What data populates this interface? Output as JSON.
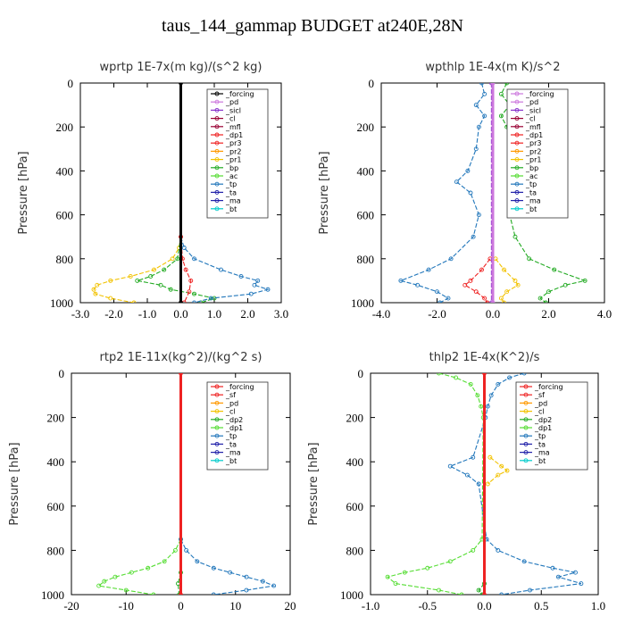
{
  "figure": {
    "title": "taus_144_gammap  BUDGET at240E,28N"
  },
  "colors": {
    "black": "#000000",
    "violet": "#cc77dd",
    "purple": "#8833cc",
    "maroon": "#990033",
    "red": "#ee2222",
    "orange": "#ff9900",
    "yellow": "#f2c200",
    "green": "#22aa22",
    "lightgreen": "#55dd33",
    "blue": "#2277bb",
    "navy": "#2222aa",
    "cyan": "#00cccc"
  },
  "chart_data": [
    {
      "type": "line",
      "title": "wprtp  1E-7x(m kg)/(s^2 kg)",
      "ylabel": "Pressure [hPa]",
      "xlim": [
        -3,
        3
      ],
      "ylim": [
        1000,
        0
      ],
      "xticks": [
        "-3.0",
        "-2.0",
        "-1.0",
        "0.0",
        "1.0",
        "2.0",
        "3.0"
      ],
      "xtickvals": [
        -3,
        -2,
        -1,
        0,
        1,
        2,
        3
      ],
      "yticks": [
        "0",
        "200",
        "400",
        "600",
        "800",
        "1000"
      ],
      "ytickvals": [
        0,
        200,
        400,
        600,
        800,
        1000
      ],
      "legend": [
        "_forcing",
        "_pd",
        "_sicl",
        "_cl",
        "_mfl",
        "_dp1",
        "_pr3",
        "_pr2",
        "_pr1",
        "_bp",
        "_ac",
        "_tp",
        "_ta",
        "_ma",
        "_bt"
      ],
      "legend_colors": [
        "black",
        "violet",
        "purple",
        "maroon",
        "maroon",
        "red",
        "red",
        "orange",
        "yellow",
        "green",
        "lightgreen",
        "blue",
        "navy",
        "navy",
        "cyan"
      ],
      "series": [
        {
          "name": "_pr1",
          "color": "yellow",
          "p": [
            700,
            750,
            800,
            850,
            880,
            900,
            920,
            940,
            960,
            980,
            1000
          ],
          "values": [
            0,
            -0.05,
            -0.25,
            -0.8,
            -1.5,
            -2.1,
            -2.5,
            -2.6,
            -2.55,
            -2.1,
            -1.4
          ]
        },
        {
          "name": "_bp",
          "color": "green",
          "p": [
            700,
            800,
            850,
            880,
            900,
            920,
            940,
            960,
            980,
            1000
          ],
          "values": [
            0,
            -0.1,
            -0.5,
            -0.9,
            -1.3,
            -0.6,
            -0.3,
            0.4,
            1.0,
            0.6
          ]
        },
        {
          "name": "_tp",
          "color": "blue",
          "p": [
            700,
            750,
            800,
            850,
            880,
            900,
            920,
            940,
            960,
            980,
            1000
          ],
          "values": [
            0,
            0.1,
            0.4,
            1.2,
            1.8,
            2.3,
            2.2,
            2.6,
            2.1,
            0.9,
            0.4
          ]
        },
        {
          "name": "_dp1",
          "color": "red",
          "p": [
            700,
            800,
            850,
            900,
            950,
            1000
          ],
          "values": [
            0,
            0.05,
            0.15,
            0.3,
            0.25,
            0.1
          ]
        },
        {
          "name": "_forcing",
          "color": "black",
          "p": [
            0,
            1000
          ],
          "values": [
            0,
            0
          ]
        }
      ]
    },
    {
      "type": "line",
      "title": "wpthlp  1E-4x(m K)/s^2",
      "ylabel": "Pressure [hPa]",
      "xlim": [
        -4,
        4
      ],
      "ylim": [
        1000,
        0
      ],
      "xticks": [
        "-4.0",
        "-2.0",
        "0.0",
        "2.0",
        "4.0"
      ],
      "xtickvals": [
        -4,
        -2,
        0,
        2,
        4
      ],
      "yticks": [
        "0",
        "200",
        "400",
        "600",
        "800",
        "1000"
      ],
      "ytickvals": [
        0,
        200,
        400,
        600,
        800,
        1000
      ],
      "legend": [
        "_forcing",
        "_pd",
        "_sicl",
        "_cl",
        "_mfl",
        "_dp1",
        "_pr3",
        "_pr2",
        "_pr1",
        "_bp",
        "_ac",
        "_tp",
        "_ta",
        "_ma",
        "_bt"
      ],
      "legend_colors": [
        "violet",
        "violet",
        "purple",
        "maroon",
        "maroon",
        "red",
        "red",
        "orange",
        "yellow",
        "green",
        "lightgreen",
        "blue",
        "navy",
        "navy",
        "cyan"
      ],
      "series": [
        {
          "name": "_bp",
          "color": "green",
          "p": [
            0,
            50,
            100,
            150,
            200,
            300,
            400,
            450,
            500,
            600,
            700,
            800,
            850,
            900,
            920,
            950,
            980,
            1000
          ],
          "values": [
            0.5,
            0.3,
            0.6,
            0.3,
            0.5,
            0.7,
            1.0,
            1.3,
            0.9,
            0.6,
            0.8,
            1.3,
            2.2,
            3.3,
            2.6,
            2.0,
            1.7,
            1.9
          ]
        },
        {
          "name": "_tp",
          "color": "blue",
          "p": [
            0,
            50,
            100,
            150,
            200,
            300,
            400,
            450,
            500,
            600,
            700,
            800,
            850,
            900,
            920,
            950,
            980,
            1000
          ],
          "values": [
            -0.4,
            -0.3,
            -0.6,
            -0.3,
            -0.5,
            -0.6,
            -0.9,
            -1.3,
            -0.8,
            -0.5,
            -0.7,
            -1.5,
            -2.3,
            -3.3,
            -2.7,
            -2.0,
            -1.6,
            -1.9
          ]
        },
        {
          "name": "_pr1",
          "color": "yellow",
          "p": [
            800,
            850,
            900,
            920,
            950,
            980,
            1000
          ],
          "values": [
            0.1,
            0.4,
            0.8,
            0.9,
            0.5,
            0.3,
            0.4
          ]
        },
        {
          "name": "_dp1",
          "color": "red",
          "p": [
            800,
            850,
            900,
            920,
            950,
            980,
            1000
          ],
          "values": [
            -0.1,
            -0.4,
            -0.8,
            -1.0,
            -0.6,
            -0.3,
            -0.2
          ]
        },
        {
          "name": "_sicl",
          "color": "purple",
          "p": [
            0,
            1000
          ],
          "values": [
            -0.05,
            -0.05
          ]
        },
        {
          "name": "_forcing",
          "color": "violet",
          "p": [
            0,
            1000
          ],
          "values": [
            0,
            0
          ]
        }
      ]
    },
    {
      "type": "line",
      "title": "rtp2  1E-11x(kg^2)/(kg^2 s)",
      "ylabel": "Pressure [hPa]",
      "xlim": [
        -20,
        20
      ],
      "ylim": [
        1000,
        0
      ],
      "xticks": [
        "-20",
        "-10",
        "0",
        "10",
        "20"
      ],
      "xtickvals": [
        -20,
        -10,
        0,
        10,
        20
      ],
      "yticks": [
        "0",
        "200",
        "400",
        "600",
        "800",
        "1000"
      ],
      "ytickvals": [
        0,
        200,
        400,
        600,
        800,
        1000
      ],
      "legend": [
        "_forcing",
        "_sf",
        "_pd",
        "_cl",
        "_dp2",
        "_dp1",
        "_tp",
        "_ta",
        "_ma",
        "_bt"
      ],
      "legend_colors": [
        "red",
        "red",
        "orange",
        "yellow",
        "green",
        "lightgreen",
        "blue",
        "navy",
        "navy",
        "cyan"
      ],
      "series": [
        {
          "name": "_dp1",
          "color": "lightgreen",
          "p": [
            750,
            800,
            850,
            880,
            900,
            920,
            940,
            960,
            980,
            1000
          ],
          "values": [
            0,
            -1,
            -3,
            -6,
            -9,
            -12,
            -14,
            -15,
            -10,
            -5
          ]
        },
        {
          "name": "_tp",
          "color": "blue",
          "p": [
            750,
            800,
            850,
            880,
            900,
            920,
            940,
            960,
            980,
            1000
          ],
          "values": [
            0,
            1,
            3,
            6,
            9,
            12,
            15,
            17,
            12,
            6
          ]
        },
        {
          "name": "_dp2",
          "color": "green",
          "p": [
            900,
            950,
            1000
          ],
          "values": [
            0,
            -0.5,
            -0.3
          ]
        },
        {
          "name": "_forcing",
          "color": "red",
          "p": [
            0,
            1000
          ],
          "values": [
            0,
            0
          ]
        }
      ]
    },
    {
      "type": "line",
      "title": "thlp2  1E-4x(K^2)/s",
      "ylabel": "Pressure [hPa]",
      "xlim": [
        -1.0,
        1.0
      ],
      "ylim": [
        1000,
        0
      ],
      "xticks": [
        "-1.0",
        "-0.5",
        "0.0",
        "0.5",
        "1.0"
      ],
      "xtickvals": [
        -1,
        -0.5,
        0,
        0.5,
        1
      ],
      "yticks": [
        "0",
        "200",
        "400",
        "600",
        "800",
        "1000"
      ],
      "ytickvals": [
        0,
        200,
        400,
        600,
        800,
        1000
      ],
      "legend": [
        "_forcing",
        "_sf",
        "_pd",
        "_cl",
        "_dp2",
        "_dp1",
        "_tp",
        "_ta",
        "_ma",
        "_bt"
      ],
      "legend_colors": [
        "red",
        "red",
        "orange",
        "yellow",
        "green",
        "lightgreen",
        "blue",
        "navy",
        "navy",
        "cyan"
      ],
      "series": [
        {
          "name": "_dp1",
          "color": "lightgreen",
          "p": [
            0,
            20,
            50,
            100,
            150,
            200,
            750,
            800,
            850,
            880,
            900,
            920,
            950,
            980,
            1000
          ],
          "values": [
            -0.4,
            -0.25,
            -0.12,
            -0.06,
            -0.03,
            -0.01,
            -0.02,
            -0.1,
            -0.3,
            -0.5,
            -0.7,
            -0.85,
            -0.78,
            -0.4,
            -0.2
          ]
        },
        {
          "name": "_tp",
          "color": "blue",
          "p": [
            0,
            20,
            50,
            100,
            150,
            200,
            380,
            420,
            460,
            500,
            750,
            800,
            850,
            880,
            900,
            920,
            950,
            980,
            1000
          ],
          "values": [
            0.35,
            0.22,
            0.12,
            0.06,
            0.03,
            0.01,
            -0.1,
            -0.3,
            -0.15,
            -0.05,
            0.02,
            0.12,
            0.35,
            0.6,
            0.8,
            0.65,
            0.85,
            0.4,
            0.15
          ]
        },
        {
          "name": "_cl",
          "color": "yellow",
          "p": [
            380,
            420,
            440,
            460,
            500
          ],
          "values": [
            0.05,
            0.15,
            0.2,
            0.12,
            0.03
          ]
        },
        {
          "name": "_dp2",
          "color": "green",
          "p": [
            950,
            980,
            1000
          ],
          "values": [
            0,
            -0.05,
            -0.02
          ]
        },
        {
          "name": "_forcing",
          "color": "red",
          "p": [
            0,
            1000
          ],
          "values": [
            0,
            0
          ]
        }
      ]
    }
  ]
}
